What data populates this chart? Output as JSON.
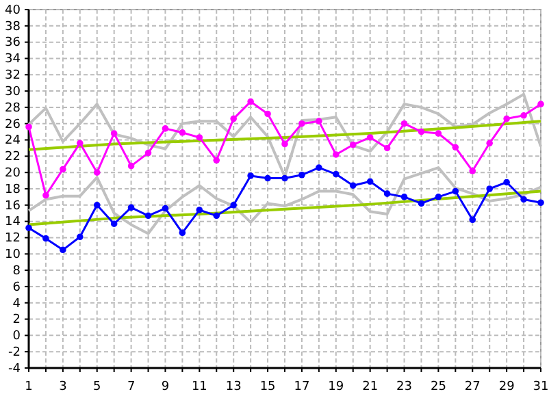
{
  "chart_data": {
    "type": "line",
    "x": [
      1,
      2,
      3,
      4,
      5,
      6,
      7,
      8,
      9,
      10,
      11,
      12,
      13,
      14,
      15,
      16,
      17,
      18,
      19,
      20,
      21,
      22,
      23,
      24,
      25,
      26,
      27,
      28,
      29,
      30,
      31
    ],
    "xlim": [
      1,
      31
    ],
    "xticks": [
      1,
      {
        "value": 2,
        "label": null
      },
      3,
      {
        "value": 4,
        "label": null
      },
      5,
      {
        "value": 6,
        "label": null
      },
      7,
      {
        "value": 8,
        "label": null
      },
      9,
      {
        "value": 10,
        "label": null
      },
      11,
      {
        "value": 12,
        "label": null
      },
      13,
      {
        "value": 14,
        "label": null
      },
      15,
      {
        "value": 16,
        "label": null
      },
      17,
      {
        "value": 18,
        "label": null
      },
      19,
      {
        "value": 20,
        "label": null
      },
      21,
      {
        "value": 22,
        "label": null
      },
      23,
      {
        "value": 24,
        "label": null
      },
      25,
      {
        "value": 26,
        "label": null
      },
      27,
      {
        "value": 28,
        "label": null
      },
      29,
      {
        "value": 30,
        "label": null
      },
      31
    ],
    "ylim": [
      -4,
      40
    ],
    "yticks": [
      -4,
      -2,
      0,
      2,
      4,
      6,
      8,
      10,
      12,
      14,
      16,
      18,
      20,
      22,
      24,
      26,
      28,
      30,
      32,
      34,
      36,
      38,
      40
    ],
    "grid": true,
    "line_style": "solid",
    "series": [
      {
        "color": "#c0c0c0",
        "marker": "none",
        "values": [
          25.9,
          27.9,
          23.8,
          26.0,
          28.4,
          24.7,
          24.2,
          23.4,
          22.9,
          26.0,
          26.3,
          26.3,
          24.4,
          26.8,
          24.4,
          19.5,
          26.4,
          26.5,
          26.8,
          23.3,
          22.6,
          25.0,
          28.4,
          28.0,
          27.2,
          25.6,
          25.9,
          27.3,
          28.4,
          29.6,
          23.2
        ]
      },
      {
        "color": "#c0c0c0",
        "marker": "none",
        "values": [
          15.3,
          16.7,
          17.1,
          17.1,
          19.4,
          15.0,
          13.6,
          12.5,
          15.3,
          17.0,
          18.4,
          16.8,
          15.9,
          13.9,
          16.2,
          15.9,
          16.7,
          17.7,
          17.7,
          17.3,
          15.2,
          14.9,
          19.2,
          19.9,
          20.6,
          18.1,
          17.4,
          16.5,
          16.8,
          17.3,
          18.2
        ]
      },
      {
        "color": "#99cc00",
        "marker": "none",
        "x": [
          1,
          6,
          11,
          16,
          21,
          26,
          31
        ],
        "values": [
          22.8,
          23.5,
          23.9,
          24.3,
          24.8,
          25.5,
          26.3
        ]
      },
      {
        "color": "#99cc00",
        "marker": "none",
        "x": [
          1,
          6,
          11,
          16,
          21,
          26,
          31
        ],
        "values": [
          13.6,
          14.4,
          14.9,
          15.5,
          16.1,
          16.9,
          17.7
        ]
      },
      {
        "color": "#ff00ff",
        "marker": "circle",
        "values": [
          25.6,
          17.2,
          20.4,
          23.6,
          20.0,
          24.8,
          20.8,
          22.4,
          25.4,
          24.9,
          24.3,
          21.5,
          26.6,
          28.7,
          27.2,
          23.5,
          26.0,
          26.3,
          22.2,
          23.4,
          24.3,
          23.0,
          26.0,
          25.0,
          24.8,
          23.1,
          20.2,
          23.6,
          26.6,
          27.0,
          28.4
        ]
      },
      {
        "color": "#0000ff",
        "marker": "circle",
        "values": [
          13.2,
          11.9,
          10.5,
          12.1,
          16.0,
          13.7,
          15.7,
          14.7,
          15.6,
          12.6,
          15.4,
          14.7,
          16.0,
          19.6,
          19.3,
          19.3,
          19.7,
          20.6,
          19.8,
          18.4,
          18.9,
          17.4,
          17.0,
          16.2,
          17.0,
          17.7,
          14.2,
          18.0,
          18.8,
          16.7,
          16.3
        ]
      }
    ]
  }
}
